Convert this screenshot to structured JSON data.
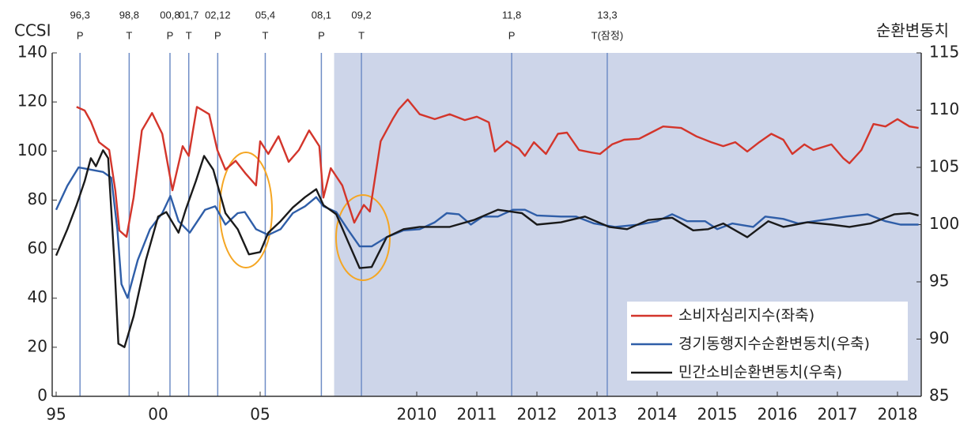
{
  "chart_data": {
    "type": "line",
    "ylabel": "CCSI",
    "y2label": "순환변동치",
    "xlim": [
      1995,
      2018.4
    ],
    "ylim": [
      0,
      140
    ],
    "yticks": [
      0,
      20,
      40,
      60,
      80,
      100,
      120,
      140
    ],
    "y2lim": [
      85,
      115
    ],
    "y2ticks": [
      85,
      90,
      95,
      100,
      105,
      110,
      115
    ],
    "xticks": [
      {
        "value": 1995,
        "label": "95"
      },
      {
        "value": 2000,
        "label": "00"
      },
      {
        "value": 2005,
        "label": "05"
      },
      2010,
      2011,
      2012,
      2013,
      2014,
      2015,
      2016,
      2017,
      2018
    ],
    "annotations": [
      {
        "x": 1996.17,
        "label": "96,3",
        "phase": "P"
      },
      {
        "x": 1998.58,
        "label": "98,8",
        "phase": "T"
      },
      {
        "x": 2000.58,
        "label": "00,8",
        "phase": "P"
      },
      {
        "x": 2001.5,
        "label": "01,7",
        "phase": "T"
      },
      {
        "x": 2002.92,
        "label": "02,12",
        "phase": "P"
      },
      {
        "x": 2005.25,
        "label": "05,4",
        "phase": "T"
      },
      {
        "x": 2008.0,
        "label": "08,1",
        "phase": "P"
      },
      {
        "x": 2009.08,
        "label": "09,2",
        "phase": "T"
      },
      {
        "x": 2011.58,
        "label": "11,8",
        "phase": "P"
      },
      {
        "x": 2013.17,
        "label": "13,3",
        "phase": "T(잠정)"
      }
    ],
    "series": [
      {
        "name": "소비자심리지수(좌축)",
        "color": "#d3352b",
        "x": [
          1996.0,
          1996.4,
          1996.7,
          1997.1,
          1997.6,
          1997.9,
          1998.1,
          1998.45,
          1998.8,
          1999.2,
          1999.7,
          2000.2,
          2000.7,
          2001.2,
          2001.5,
          2001.9,
          2002.5,
          2002.9,
          2003.3,
          2003.8,
          2004.3,
          2004.8,
          2005.0,
          2005.4,
          2005.9,
          2006.4,
          2006.9,
          2007.4,
          2007.9,
          2008.1,
          2008.46,
          2008.76,
          2008.96,
          2009.12,
          2009.22,
          2009.4,
          2009.6,
          2009.7,
          2009.85,
          2010.05,
          2010.3,
          2010.55,
          2010.8,
          2011.0,
          2011.2,
          2011.3,
          2011.5,
          2011.7,
          2011.8,
          2011.95,
          2012.15,
          2012.35,
          2012.5,
          2012.7,
          2012.9,
          2013.05,
          2013.25,
          2013.45,
          2013.7,
          2013.9,
          2014.1,
          2014.4,
          2014.65,
          2014.9,
          2015.1,
          2015.3,
          2015.5,
          2015.7,
          2015.9,
          2016.1,
          2016.25,
          2016.45,
          2016.6,
          2016.9,
          2017.1,
          2017.2,
          2017.4,
          2017.6,
          2017.8,
          2018.0,
          2018.2,
          2018.35
        ],
        "values": [
          118,
          116.5,
          112,
          103.6,
          100.4,
          84,
          67.6,
          65,
          81,
          108.4,
          115.5,
          107,
          84,
          102,
          98,
          118,
          115,
          100.4,
          92.4,
          96,
          90.7,
          86,
          104,
          98.8,
          106,
          95.6,
          100.4,
          108.4,
          102,
          81,
          93,
          86,
          70.8,
          78,
          75.3,
          104,
          113,
          117,
          121,
          115,
          113,
          115,
          112.6,
          114,
          111.7,
          99.8,
          104,
          101,
          98,
          103.6,
          98.8,
          107,
          107.5,
          100.4,
          99.4,
          98.8,
          102.7,
          104.6,
          105,
          107.5,
          110,
          109.4,
          106,
          103.6,
          102,
          103.6,
          99.8,
          103.6,
          107,
          104.6,
          98.8,
          102.7,
          100.4,
          102.7,
          97,
          95,
          100.4,
          111,
          110,
          113,
          110,
          109.4
        ]
      },
      {
        "name": "경기동행지수순환변동치(우축)",
        "color": "#2f5ea8",
        "axis": "y2",
        "x": [
          1995.0,
          1995.55,
          1996.1,
          1996.7,
          1997.3,
          1997.7,
          1998.0,
          1998.2,
          1998.5,
          1999.0,
          1999.6,
          2000.2,
          2000.6,
          2001.0,
          2001.55,
          2002.3,
          2002.8,
          2003.3,
          2003.9,
          2004.25,
          2004.8,
          2005.4,
          2006.0,
          2006.6,
          2007.2,
          2007.75,
          2008.1,
          2008.66,
          2008.85,
          2009.05,
          2009.25,
          2009.5,
          2009.78,
          2010.05,
          2010.3,
          2010.5,
          2010.7,
          2010.9,
          2011.1,
          2011.35,
          2011.6,
          2011.8,
          2012.0,
          2012.4,
          2012.65,
          2012.95,
          2013.3,
          2013.7,
          2014.0,
          2014.25,
          2014.5,
          2014.8,
          2015.0,
          2015.25,
          2015.6,
          2015.8,
          2016.1,
          2016.35,
          2016.75,
          2017.15,
          2017.5,
          2017.8,
          2018.05,
          2018.35
        ],
        "values": [
          101.3,
          103.4,
          105,
          104.8,
          104.6,
          104.1,
          99.6,
          94.8,
          93.6,
          96.9,
          99.6,
          101,
          102.5,
          100.3,
          99.3,
          101.3,
          101.6,
          100,
          101,
          101.1,
          99.6,
          99.1,
          99.6,
          101,
          101.6,
          102.4,
          101.6,
          101.1,
          99.6,
          98.1,
          98.1,
          98.9,
          99.5,
          99.6,
          100.2,
          101,
          100.9,
          100,
          100.7,
          100.7,
          101.3,
          101.3,
          100.8,
          100.7,
          100.7,
          100.1,
          99.8,
          100,
          100.3,
          100.9,
          100.3,
          100.3,
          99.6,
          100.1,
          99.8,
          100.7,
          100.5,
          100.1,
          100.4,
          100.7,
          100.9,
          100.3,
          100,
          100
        ]
      },
      {
        "name": "민간소비순환변동치(우축)",
        "color": "#1a1a1a",
        "axis": "y2",
        "x": [
          1995.0,
          1995.55,
          1996.0,
          1996.4,
          1996.7,
          1996.95,
          1997.3,
          1997.55,
          1997.85,
          1998.05,
          1998.35,
          1998.8,
          1999.4,
          2000.0,
          2000.4,
          2001.0,
          2001.35,
          2001.85,
          2002.25,
          2002.7,
          2003.3,
          2003.9,
          2004.45,
          2005.0,
          2005.4,
          2006.0,
          2006.6,
          2007.2,
          2007.75,
          2008.1,
          2008.66,
          2008.85,
          2009.05,
          2009.25,
          2009.5,
          2009.78,
          2010.05,
          2010.55,
          2010.95,
          2011.35,
          2011.75,
          2012.0,
          2012.4,
          2012.8,
          2013.2,
          2013.5,
          2013.85,
          2014.25,
          2014.6,
          2014.85,
          2015.1,
          2015.5,
          2015.85,
          2016.1,
          2016.5,
          2016.9,
          2017.2,
          2017.55,
          2017.95,
          2018.2,
          2018.35
        ],
        "values": [
          97.3,
          99.6,
          101.7,
          103.8,
          105.8,
          105.1,
          106.5,
          105.8,
          96.9,
          89.6,
          89.3,
          92,
          96.9,
          100.7,
          101.1,
          99.3,
          101.3,
          103.8,
          106,
          104.8,
          101,
          99.6,
          97.4,
          97.6,
          99.3,
          100.3,
          101.5,
          102.4,
          103.1,
          101.7,
          100.9,
          98.6,
          96.2,
          96.3,
          98.9,
          99.6,
          99.8,
          99.8,
          100.4,
          101.3,
          101,
          100,
          100.2,
          100.7,
          99.8,
          99.6,
          100.4,
          100.6,
          99.5,
          99.6,
          100.1,
          98.9,
          100.3,
          99.8,
          100.2,
          100,
          99.8,
          100.1,
          100.9,
          101,
          100.8
        ]
      }
    ]
  }
}
